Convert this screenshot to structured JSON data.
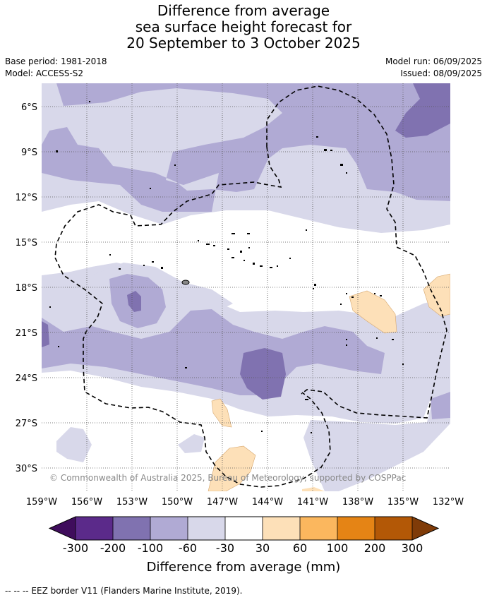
{
  "title": {
    "line1": "Difference from average",
    "line2": "sea surface height forecast for",
    "line3": "20 September to 3 October 2025"
  },
  "meta": {
    "base_period": "Base period: 1981-2018",
    "model": "Model: ACCESS-S2",
    "model_run": "Model run: 06/09/2025",
    "issued": "Issued: 08/09/2025"
  },
  "map": {
    "lat_labels": [
      "6°S",
      "9°S",
      "12°S",
      "15°S",
      "18°S",
      "21°S",
      "24°S",
      "27°S",
      "30°S"
    ],
    "lon_labels": [
      "159°W",
      "156°W",
      "153°W",
      "150°W",
      "147°W",
      "144°W",
      "141°W",
      "138°W",
      "135°W",
      "132°W"
    ],
    "copyright": "© Commonwealth of Australia 2025, Bureau of Meteorology, supported by COSPPac"
  },
  "colorbar": {
    "labels": [
      "-300",
      "-200",
      "-100",
      "-60",
      "-30",
      "30",
      "60",
      "100",
      "200",
      "300"
    ],
    "colors": [
      "#3f0d5c",
      "#5b2a8a",
      "#8072b0",
      "#b0aad4",
      "#d8d8ea",
      "#ffffff",
      "#fde0b8",
      "#fbb75e",
      "#e58415",
      "#b35806",
      "#7f3b08"
    ],
    "title": "Difference from average (mm)"
  },
  "footer": "-- -- -- EEZ border V11 (Flanders Marine Institute, 2019)."
}
